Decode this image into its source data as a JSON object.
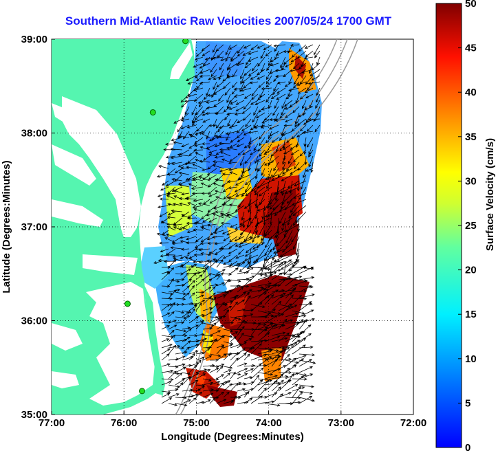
{
  "title": "Southern Mid-Atlantic Raw Velocities 2007/05/24 1700 GMT",
  "map": {
    "xlabel": "Longitude (Degrees:Minutes)",
    "ylabel": "Latitude (Degrees:Minutes)",
    "x_ticks": [
      "77:00",
      "76:00",
      "75:00",
      "74:00",
      "73:00",
      "72:00"
    ],
    "y_ticks": [
      "39:00",
      "38:00",
      "37:00",
      "36:00",
      "35:00"
    ],
    "lon_range": [
      -77,
      -72
    ],
    "lat_range": [
      35,
      39
    ],
    "land_color": "#55f5b0",
    "grid": "dotted"
  },
  "colorbar": {
    "label": "Surface Velocity (cm/s)",
    "ticks": [
      "50",
      "45",
      "40",
      "35",
      "30",
      "25",
      "20",
      "15",
      "10",
      "5",
      "0"
    ],
    "min": 0,
    "max": 50
  },
  "stations": [
    {
      "lon": -75.15,
      "lat": 38.98
    },
    {
      "lon": -75.6,
      "lat": 38.22
    },
    {
      "lon": -75.95,
      "lat": 36.18
    },
    {
      "lon": -75.75,
      "lat": 35.25
    }
  ]
}
